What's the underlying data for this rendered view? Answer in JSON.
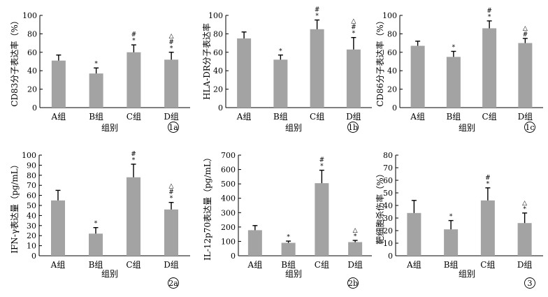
{
  "chart_data": [
    {
      "type": "bar",
      "ylabel": "CD83分子表达率（%）",
      "xlabel": "组别",
      "tag": "1a",
      "ylim": [
        0,
        100
      ],
      "yticks": [
        0,
        20,
        40,
        60,
        80,
        100
      ],
      "categories": [
        "A组",
        "B组",
        "C组",
        "D组"
      ],
      "values": [
        51,
        37,
        60,
        52
      ],
      "errors": [
        6,
        6,
        8,
        8
      ],
      "marks": [
        "",
        "*",
        "#\n*",
        "△\n#\n*"
      ]
    },
    {
      "type": "bar",
      "ylabel": "HLA-DR分子表达率",
      "xlabel": "组别",
      "tag": "1b",
      "ylim": [
        0,
        100
      ],
      "yticks": [
        0,
        20,
        40,
        60,
        80,
        100
      ],
      "categories": [
        "A组",
        "B组",
        "C组",
        "D组"
      ],
      "values": [
        75,
        52,
        85,
        63
      ],
      "errors": [
        7,
        5,
        10,
        13
      ],
      "marks": [
        "",
        "*",
        "#\n*",
        "△\n#\n*"
      ]
    },
    {
      "type": "bar",
      "ylabel": "CD86分子表达率（%）",
      "xlabel": "组别",
      "tag": "1c",
      "ylim": [
        0,
        100
      ],
      "yticks": [
        0,
        20,
        40,
        60,
        80,
        100
      ],
      "categories": [
        "A组",
        "B组",
        "C组",
        "D组"
      ],
      "values": [
        67,
        55,
        86,
        70
      ],
      "errors": [
        5,
        6,
        8,
        5
      ],
      "marks": [
        "",
        "*",
        "#\n*",
        "△\n#"
      ]
    },
    {
      "type": "bar",
      "ylabel": "IFN-γ表达量（pg/mL）",
      "xlabel": "组别",
      "tag": "2a",
      "ylim": [
        0,
        100
      ],
      "yticks": [
        0,
        10,
        20,
        30,
        40,
        50,
        60,
        70,
        80,
        90,
        100
      ],
      "categories": [
        "A组",
        "B组",
        "C组",
        "D组"
      ],
      "values": [
        55,
        22,
        78,
        46
      ],
      "errors": [
        10,
        6,
        13,
        7
      ],
      "marks": [
        "",
        "*",
        "#\n*",
        "△\n#\n*"
      ]
    },
    {
      "type": "bar",
      "ylabel": "IL-12p70表达量（pg/mL）",
      "xlabel": "组别",
      "tag": "2b",
      "ylim": [
        0,
        700
      ],
      "yticks": [
        0,
        100,
        200,
        300,
        400,
        500,
        600,
        700
      ],
      "categories": [
        "A组",
        "B组",
        "C组",
        "D组"
      ],
      "values": [
        178,
        90,
        505,
        95
      ],
      "errors": [
        32,
        12,
        90,
        12
      ],
      "marks": [
        "",
        "*",
        "#\n*",
        "△\n*"
      ]
    },
    {
      "type": "bar",
      "ylabel": "靶细胞杀伤率（%）",
      "xlabel": "组别",
      "tag": "3",
      "ylim": [
        0,
        80
      ],
      "yticks": [
        0,
        10,
        20,
        30,
        40,
        50,
        60,
        70,
        80
      ],
      "categories": [
        "A组",
        "B组",
        "C组",
        "D组"
      ],
      "values": [
        34,
        21,
        44,
        26
      ],
      "errors": [
        10,
        7,
        10,
        8
      ],
      "marks": [
        "",
        "*",
        "#\n*",
        "△\n*"
      ]
    }
  ]
}
